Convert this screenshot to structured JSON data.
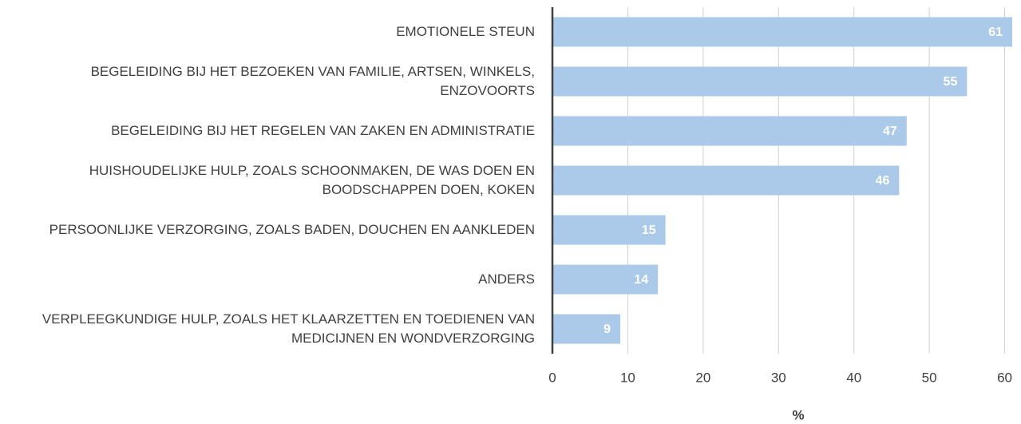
{
  "chart_data": {
    "type": "bar",
    "orientation": "horizontal",
    "categories": [
      "EMOTIONELE STEUN",
      "BEGELEIDING BIJ HET BEZOEKEN VAN FAMILIE, ARTSEN, WINKELS, ENZOVOORTS",
      "BEGELEIDING BIJ HET REGELEN VAN ZAKEN EN ADMINISTRATIE",
      "HUISHOUDELIJKE HULP, ZOALS SCHOONMAKEN, DE WAS DOEN EN BOODSCHAPPEN DOEN, KOKEN",
      "PERSOONLIJKE VERZORGING, ZOALS BADEN, DOUCHEN EN AANKLEDEN",
      "ANDERS",
      "VERPLEEGKUNDIGE HULP, ZOALS HET KLAARZETTEN EN TOEDIENEN VAN MEDICIJNEN EN WONDVERZORGING"
    ],
    "values": [
      61,
      55,
      47,
      46,
      15,
      14,
      9
    ],
    "color": "#abc9e9",
    "xlabel": "%",
    "xlim": [
      0,
      61
    ],
    "xticks": [
      0,
      10,
      20,
      30,
      40,
      50,
      60
    ],
    "grid": true
  }
}
